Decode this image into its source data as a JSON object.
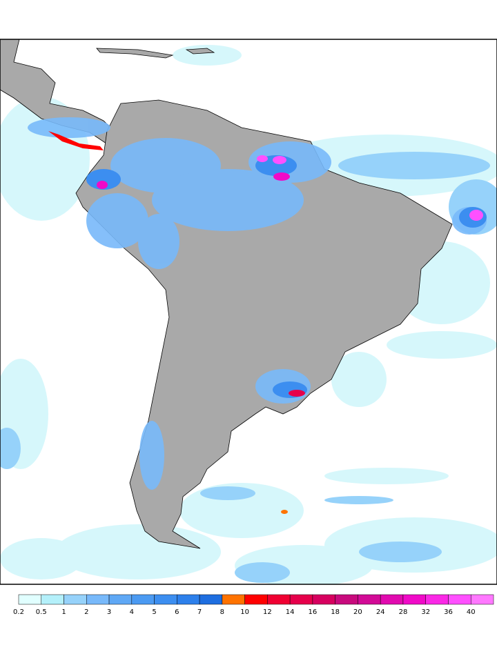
{
  "colorbar": {
    "labels": [
      0.2,
      0.5,
      1,
      2,
      3,
      4,
      5,
      6,
      7,
      8,
      10,
      12,
      14,
      16,
      18,
      20,
      24,
      28,
      32,
      36,
      40
    ],
    "colors": [
      "#e1ffff",
      "#b4f0fa",
      "#96d2fa",
      "#78b9fa",
      "#5fa8f5",
      "#4b9af2",
      "#3c8ef0",
      "#2d80eb",
      "#1e6ee0",
      "#ff7300",
      "#ff0000",
      "#f00032",
      "#e6004b",
      "#d7005f",
      "#c80a7d",
      "#d20a96",
      "#e10aaf",
      "#f00ac8",
      "#fa28e6",
      "#ff50ff",
      "#ff78ff"
    ]
  }
}
